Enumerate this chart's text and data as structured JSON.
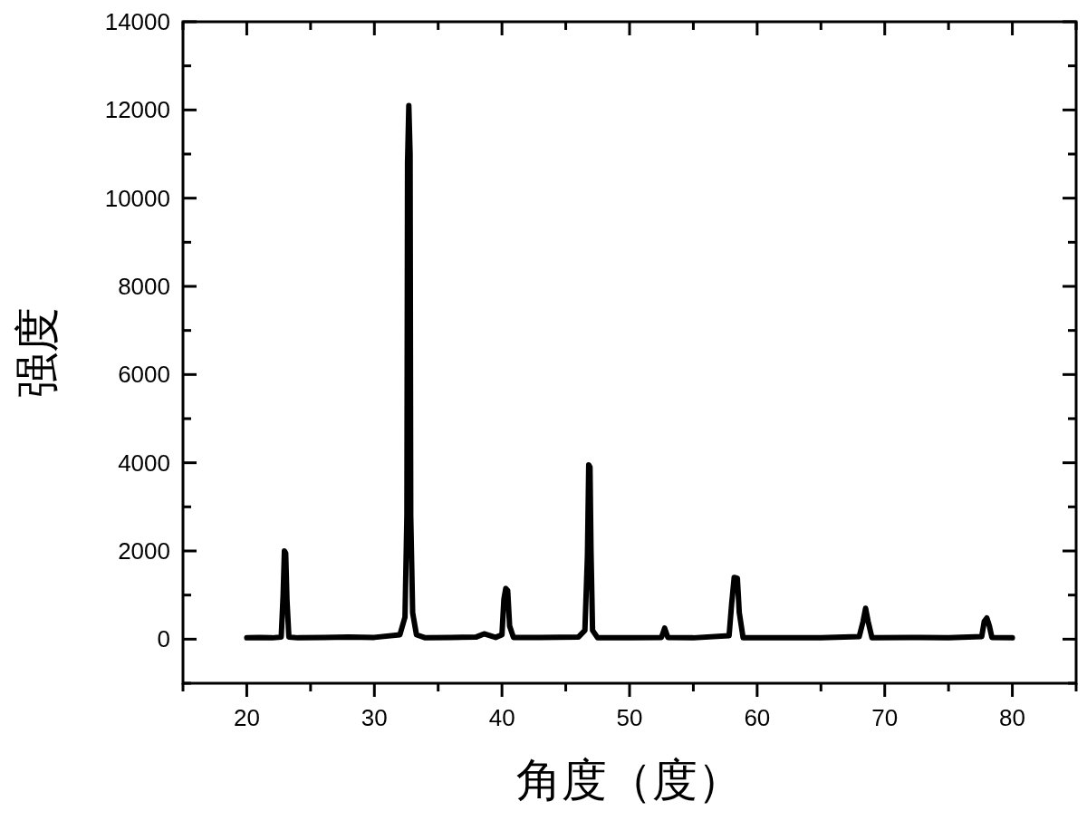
{
  "chart_data": {
    "type": "line",
    "xlabel": "角度（度）",
    "ylabel": "强度",
    "xlim": [
      15,
      85
    ],
    "ylim": [
      -1000,
      14000
    ],
    "xticks": [
      {
        "value": 15,
        "label": null
      },
      20,
      {
        "value": 25,
        "label": null
      },
      30,
      {
        "value": 35,
        "label": null
      },
      40,
      {
        "value": 45,
        "label": null
      },
      50,
      {
        "value": 55,
        "label": null
      },
      60,
      {
        "value": 65,
        "label": null
      },
      70,
      {
        "value": 75,
        "label": null
      },
      80,
      {
        "value": 85,
        "label": null
      }
    ],
    "yticks": [
      {
        "value": -1000,
        "label": null
      },
      0,
      {
        "value": 1000,
        "label": null
      },
      2000,
      {
        "value": 3000,
        "label": null
      },
      4000,
      {
        "value": 5000,
        "label": null
      },
      6000,
      {
        "value": 7000,
        "label": null
      },
      8000,
      {
        "value": 9000,
        "label": null
      },
      10000,
      {
        "value": 11000,
        "label": null
      },
      12000,
      {
        "value": 13000,
        "label": null
      },
      14000
    ],
    "grid": false,
    "marker": "none",
    "line_style": "solid",
    "series": [
      {
        "color": "#000000",
        "x": [
          20.0,
          21,
          22,
          22.7,
          22.85,
          22.95,
          23.05,
          23.15,
          23.3,
          24,
          26,
          28,
          30,
          32,
          32.4,
          32.55,
          32.6,
          32.7,
          32.8,
          32.85,
          33.0,
          33.3,
          34,
          36,
          38,
          38.6,
          39.5,
          40.0,
          40.15,
          40.3,
          40.45,
          40.6,
          40.9,
          43,
          46,
          46.5,
          46.7,
          46.8,
          46.9,
          46.98,
          47.1,
          47.5,
          50,
          52.5,
          52.75,
          53.0,
          55,
          57.8,
          58.0,
          58.2,
          58.45,
          58.6,
          58.9,
          62,
          65,
          68.0,
          68.3,
          68.5,
          68.7,
          69,
          72,
          75,
          77.6,
          77.8,
          78.0,
          78.2,
          78.4,
          80
        ],
        "values": [
          30,
          40,
          30,
          50,
          1000,
          2000,
          1950,
          900,
          50,
          30,
          40,
          50,
          40,
          100,
          500,
          2800,
          10800,
          12100,
          11000,
          2800,
          600,
          100,
          30,
          40,
          50,
          120,
          40,
          100,
          900,
          1150,
          1100,
          300,
          40,
          40,
          50,
          200,
          1900,
          3950,
          3900,
          2000,
          200,
          30,
          30,
          40,
          250,
          40,
          30,
          80,
          800,
          1400,
          1380,
          600,
          30,
          30,
          30,
          60,
          400,
          700,
          400,
          30,
          40,
          30,
          60,
          400,
          480,
          300,
          40,
          30
        ]
      }
    ]
  }
}
